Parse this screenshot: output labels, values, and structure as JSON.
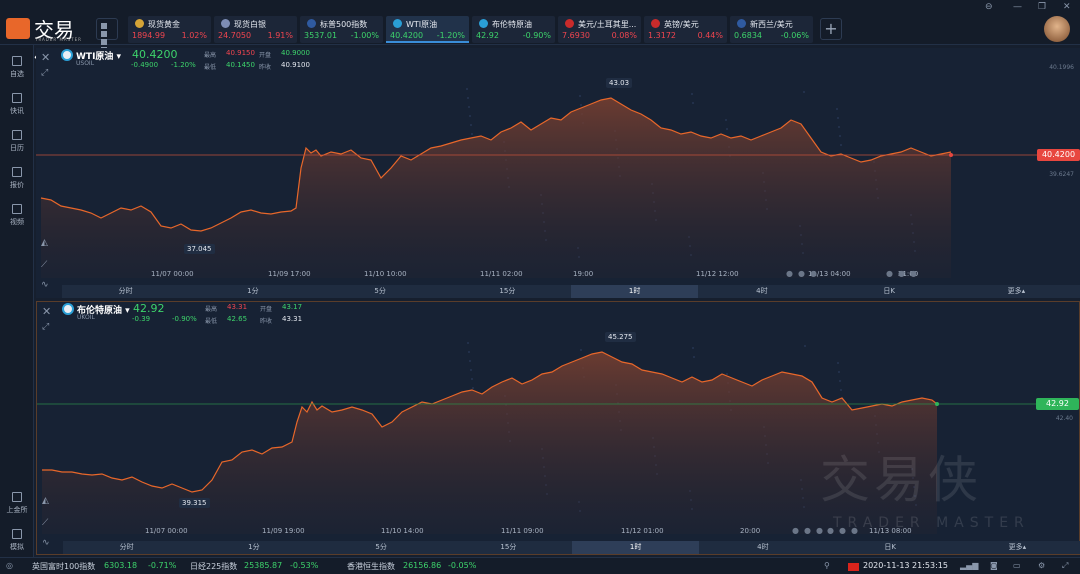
{
  "app": {
    "logo_cn": "交易侠",
    "logo_en": "TRADER MASTER"
  },
  "window": {
    "pin": "⊖",
    "min": "—",
    "max": "❐",
    "close": "✕"
  },
  "tickers": [
    {
      "name": "现货黄金",
      "price": "1894.99",
      "change": "1.02%",
      "up": true,
      "flag": "#d4a437"
    },
    {
      "name": "现货白银",
      "price": "24.7050",
      "change": "1.91%",
      "up": true,
      "flag": "#7d8db5"
    },
    {
      "name": "标普500指数",
      "price": "3537.01",
      "change": "-1.00%",
      "up": false,
      "flag": "#2f5aa0"
    },
    {
      "name": "WTI原油",
      "price": "40.4200",
      "change": "-1.20%",
      "up": false,
      "flag": "#2a9fd6",
      "active": true
    },
    {
      "name": "布伦特原油",
      "price": "42.92",
      "change": "-0.90%",
      "up": false,
      "flag": "#2a9fd6"
    },
    {
      "name": "美元/土耳其里...",
      "price": "7.6930",
      "change": "0.08%",
      "up": true,
      "flag": "#c92b2b"
    },
    {
      "name": "英镑/美元",
      "price": "1.3172",
      "change": "0.44%",
      "up": true,
      "flag": "#c92b2b"
    },
    {
      "name": "新西兰/美元",
      "price": "0.6834",
      "change": "-0.06%",
      "up": false,
      "flag": "#2f5aa0"
    }
  ],
  "sidebar": [
    {
      "label": "自选"
    },
    {
      "label": "快讯"
    },
    {
      "label": "日历"
    },
    {
      "label": "报价"
    },
    {
      "label": "视频"
    }
  ],
  "sidebar_bottom": [
    {
      "label": "上金所"
    },
    {
      "label": "模拟"
    }
  ],
  "panels": [
    {
      "name": "WTI原油",
      "code": "USOIL",
      "price": "40.4200",
      "chg": "-0.4900",
      "chgp": "-1.20%",
      "high_k": "最高",
      "high": "40.9150",
      "open_k": "开盘",
      "open": "40.9000",
      "low_k": "最低",
      "low": "40.1450",
      "prev_k": "昨收",
      "prev": "40.9100",
      "axis_top": "40.1996",
      "axis_low": "39.6247",
      "price_tag": "40.4200",
      "max_label": "43.03",
      "min_label": "37.045",
      "times": [
        "11/07 00:00",
        "11/09 17:00",
        "11/10 10:00",
        "11/11 02:00",
        "19:00",
        "11/12 12:00",
        "11/13 04:00",
        "21:00"
      ],
      "tabs": [
        "分时",
        "1分",
        "5分",
        "15分",
        "1时",
        "4时",
        "日K",
        "更多▴"
      ],
      "active_tab": 4
    },
    {
      "name": "布伦特原油",
      "code": "UKOIL",
      "price": "42.92",
      "chg": "-0.39",
      "chgp": "-0.90%",
      "high_k": "最高",
      "high": "43.31",
      "open_k": "开盘",
      "open": "43.17",
      "low_k": "最低",
      "low": "42.65",
      "prev_k": "昨收",
      "prev": "43.31",
      "axis_low": "42.40",
      "price_tag": "42.92",
      "max_label": "45.275",
      "min_label": "39.315",
      "times": [
        "11/07 00:00",
        "11/09 19:00",
        "11/10 14:00",
        "11/11 09:00",
        "11/12 01:00",
        "20:00",
        "11/13 08:00"
      ],
      "tabs": [
        "分时",
        "1分",
        "5分",
        "15分",
        "1时",
        "4时",
        "日K",
        "更多▴"
      ],
      "active_tab": 4
    }
  ],
  "watermark": {
    "cn": "交易侠",
    "en": "TRADER MASTER"
  },
  "bottom": {
    "i1_name": "英国富时100指数",
    "i1_val": "6303.18",
    "i1_chg": "-0.71%",
    "i2_name": "日经225指数",
    "i2_val": "25385.87",
    "i2_chg": "-0.53%",
    "i3_name": "香港恒生指数",
    "i3_val": "26156.86",
    "i3_chg": "-0.05%",
    "datetime": "2020-11-13 21:53:15"
  },
  "colors": {
    "up": "#f0454f",
    "down": "#3dd36b",
    "line": "#e8672a"
  }
}
